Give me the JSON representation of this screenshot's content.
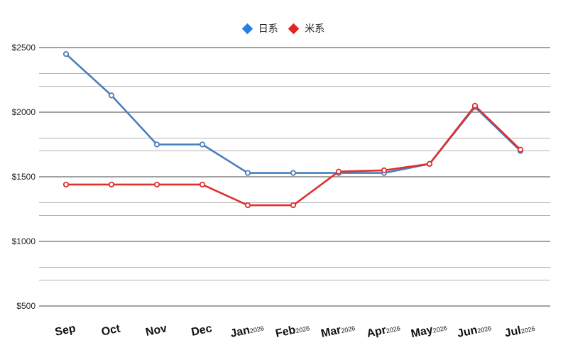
{
  "chart_data": {
    "type": "line",
    "title": "",
    "xlabel": "",
    "ylabel": "",
    "legend_position": "top-center",
    "grid": true,
    "ylim": [
      500,
      2500
    ],
    "y_ticks": [
      "$2500",
      "$2000",
      "$1500",
      "$1000",
      "$500"
    ],
    "categories": [
      {
        "label": "Sep",
        "year": ""
      },
      {
        "label": "Oct",
        "year": ""
      },
      {
        "label": "Nov",
        "year": ""
      },
      {
        "label": "Dec",
        "year": ""
      },
      {
        "label": "Jan",
        "year": "2026"
      },
      {
        "label": "Feb",
        "year": "2026"
      },
      {
        "label": "Mar",
        "year": "2026"
      },
      {
        "label": "Apr",
        "year": "2026"
      },
      {
        "label": "May",
        "year": "2026"
      },
      {
        "label": "Jun",
        "year": "2026"
      },
      {
        "label": "Jul",
        "year": "2026"
      }
    ],
    "series": [
      {
        "name": "日系",
        "color": "#4a7ebb",
        "legend_color": "#2b7fe0",
        "values": [
          2450,
          2130,
          1750,
          1750,
          1530,
          1530,
          1530,
          1530,
          1600,
          2040,
          1700
        ]
      },
      {
        "name": "米系",
        "color": "#e03030",
        "legend_color": "#e02525",
        "values": [
          1440,
          1440,
          1440,
          1440,
          1280,
          1280,
          1540,
          1550,
          1600,
          2050,
          1710
        ]
      }
    ]
  }
}
